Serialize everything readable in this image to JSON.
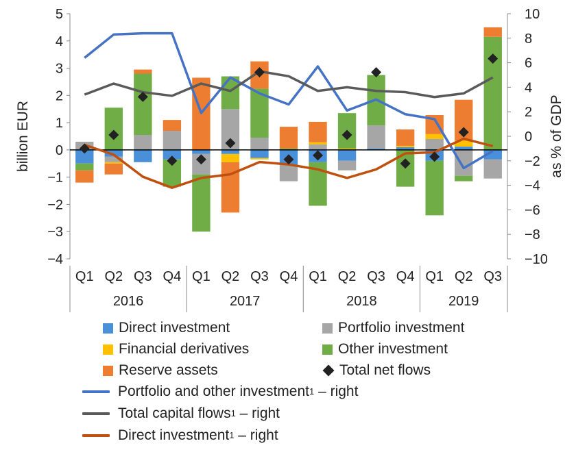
{
  "chart_data": {
    "type": "bar",
    "left_axis": {
      "label": "billion  EUR",
      "ylim": [
        -4,
        5
      ],
      "ticks": [
        "5",
        "4",
        "3",
        "2",
        "1",
        "0",
        "−1",
        "−2",
        "−3",
        "−4"
      ]
    },
    "right_axis": {
      "label": "as % of GDP",
      "ylim": [
        -10,
        10
      ],
      "ticks": [
        "10",
        "8",
        "6",
        "4",
        "2",
        "0",
        "−2",
        "−4",
        "−6",
        "−8",
        "−10"
      ]
    },
    "quarters": [
      "Q1",
      "Q2",
      "Q3",
      "Q4",
      "Q1",
      "Q2",
      "Q3",
      "Q4",
      "Q1",
      "Q2",
      "Q3",
      "Q4",
      "Q1",
      "Q2",
      "Q3"
    ],
    "years": [
      {
        "label": "2016",
        "count": 4
      },
      {
        "label": "2017",
        "count": 4
      },
      {
        "label": "2018",
        "count": 4
      },
      {
        "label": "2019",
        "count": 3
      }
    ],
    "stacked_series": [
      {
        "name": "Direct investment",
        "color": "#4a90d9",
        "values": [
          -0.5,
          -0.25,
          -0.45,
          -0.35,
          -0.15,
          -0.15,
          -0.3,
          -0.55,
          -0.45,
          -0.4,
          0.05,
          0.1,
          -0.4,
          0.12,
          -0.35
        ]
      },
      {
        "name": "Portfolio investment",
        "color": "#a6a6a6",
        "values": [
          0.3,
          -0.2,
          0.55,
          0.7,
          -0.75,
          1.5,
          0.45,
          -0.6,
          0.2,
          -0.35,
          0.85,
          0.0,
          0.4,
          -0.95,
          -0.7
        ]
      },
      {
        "name": "Financial derivatives",
        "color": "#ffc000",
        "values": [
          0.0,
          -0.05,
          0.0,
          0.0,
          0.0,
          -0.3,
          -0.05,
          0.0,
          0.08,
          0.05,
          0.0,
          0.05,
          0.18,
          0.22,
          0.0
        ]
      },
      {
        "name": "Other investment",
        "color": "#70ad47",
        "values": [
          -0.25,
          1.55,
          2.25,
          -1.0,
          -2.1,
          1.2,
          1.8,
          0.05,
          -1.6,
          1.3,
          1.85,
          -1.35,
          -2.0,
          -0.2,
          4.15
        ]
      },
      {
        "name": "Reserve assets",
        "color": "#ed7d31",
        "values": [
          -0.45,
          -0.4,
          0.15,
          0.4,
          2.65,
          -1.85,
          1.0,
          0.8,
          0.75,
          0.0,
          0.0,
          0.6,
          0.7,
          1.5,
          0.35
        ]
      }
    ],
    "total_net_flows": {
      "name": "Total net flows",
      "color": "#222222",
      "values": [
        0.05,
        0.55,
        1.95,
        -0.4,
        -0.35,
        0.25,
        2.85,
        -0.35,
        -0.2,
        0.55,
        2.85,
        -0.5,
        -0.25,
        0.65,
        3.35
      ]
    },
    "line_series": [
      {
        "name": "Portfolio and other investment",
        "color": "#4472c4",
        "values": [
          6.4,
          8.3,
          8.4,
          8.4,
          1.9,
          4.8,
          3.5,
          2.6,
          5.7,
          2.1,
          3.0,
          1.8,
          1.4,
          -2.6,
          -1.2
        ]
      },
      {
        "name": "Total capital flows",
        "color": "#5a5a5a",
        "values": [
          3.4,
          4.3,
          3.6,
          3.3,
          4.3,
          3.7,
          5.3,
          4.9,
          3.7,
          4.0,
          3.7,
          3.6,
          3.2,
          3.5,
          4.8
        ]
      },
      {
        "name": "Direct investment",
        "color": "#c0500e",
        "values": [
          -0.7,
          -1.5,
          -3.3,
          -4.2,
          -3.4,
          -3.1,
          -2.1,
          -2.3,
          -2.7,
          -3.4,
          -2.7,
          -1.4,
          -1.3,
          -0.2,
          -0.8
        ]
      }
    ],
    "legend": {
      "placement": "bottom",
      "items": [
        {
          "label": "Direct investment",
          "kind": "box",
          "color": "#4a90d9"
        },
        {
          "label": "Portfolio investment",
          "kind": "box",
          "color": "#a6a6a6"
        },
        {
          "label": "Financial derivatives",
          "kind": "box",
          "color": "#ffc000"
        },
        {
          "label": "Other investment",
          "kind": "box",
          "color": "#70ad47"
        },
        {
          "label": "Reserve assets",
          "kind": "box",
          "color": "#ed7d31"
        },
        {
          "label": "Total net flows",
          "kind": "diamond",
          "color": "#222222"
        },
        {
          "label": "Portfolio and other investment",
          "sup": "1",
          "suffix": " – right",
          "kind": "line",
          "color": "#4472c4"
        },
        {
          "label": "Total capital flows",
          "sup": "1",
          "suffix": " – right",
          "kind": "line",
          "color": "#5a5a5a"
        },
        {
          "label": "Direct investment",
          "sup": "1",
          "suffix": " – right",
          "kind": "line",
          "color": "#c0500e"
        }
      ]
    },
    "grid": false
  }
}
